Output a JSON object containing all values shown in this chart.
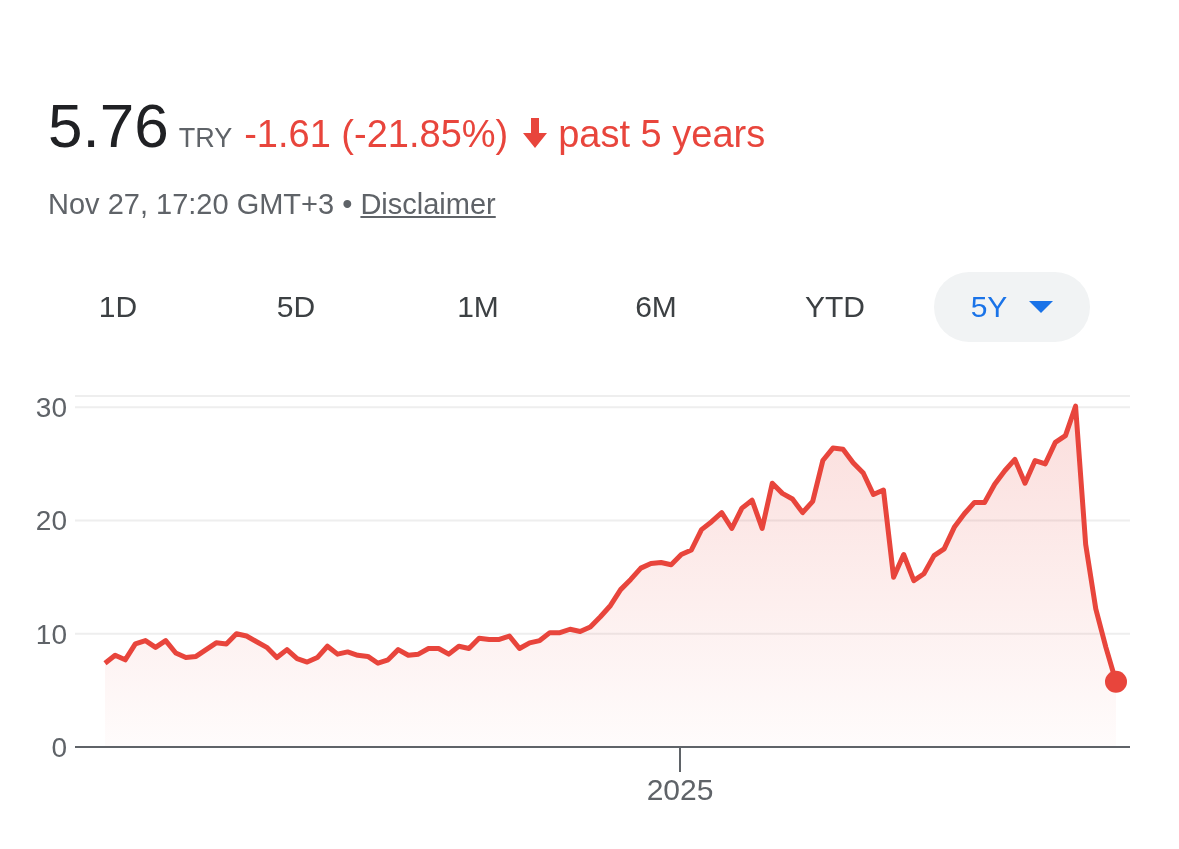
{
  "chart_data": {
    "type": "area",
    "title": "5.76",
    "subtitle": "Nov 27, 17:20 GMT+3 • Disclaimer",
    "annotations": [
      "TRY",
      "-1.61 (-21.85%)",
      "past 5 years",
      "1D",
      "5D",
      "1M",
      "6M",
      "YTD",
      "5Y",
      "2025"
    ],
    "categories": [
      null,
      null,
      null,
      null,
      null,
      null,
      null,
      null,
      null,
      null,
      null,
      null,
      null,
      null,
      null,
      null,
      null,
      null,
      null,
      null,
      null,
      null,
      null,
      null,
      null,
      null,
      null,
      null,
      null,
      null,
      null,
      null,
      null,
      null,
      null,
      null,
      null,
      null,
      null,
      null,
      null,
      null,
      null,
      null,
      null,
      null,
      null,
      null,
      null,
      null,
      null,
      null,
      null,
      null,
      null,
      null,
      null,
      null,
      null,
      null,
      null,
      null,
      null,
      null,
      null,
      null,
      null,
      null,
      null,
      null,
      null,
      null,
      null,
      null,
      null,
      null,
      null,
      null,
      null,
      null,
      null,
      null,
      null,
      null,
      null,
      null,
      null,
      null,
      null,
      null,
      null,
      null,
      null,
      null,
      null,
      null,
      null,
      null,
      null,
      null,
      null
    ],
    "ylim": [
      0,
      31
    ],
    "yticks": [
      0,
      10,
      20,
      30
    ],
    "grid": "y",
    "legend": false,
    "line_style": "solid",
    "series": [
      {
        "color": "#e8453c",
        "values": [
          7.4,
          8.1,
          7.7,
          9.1,
          9.4,
          8.8,
          9.4,
          8.3,
          7.9,
          8.0,
          8.6,
          9.2,
          9.1,
          10.0,
          9.8,
          9.3,
          8.8,
          7.9,
          8.6,
          7.8,
          7.5,
          7.9,
          8.9,
          8.2,
          8.4,
          8.1,
          8.0,
          7.4,
          7.7,
          8.6,
          8.1,
          8.2,
          8.7,
          8.7,
          8.2,
          8.9,
          8.7,
          9.6,
          9.5,
          9.5,
          9.8,
          8.7,
          9.2,
          9.4,
          10.1,
          10.1,
          10.4,
          10.2,
          10.6,
          11.5,
          12.5,
          13.9,
          14.8,
          15.8,
          16.2,
          16.3,
          16.1,
          17.0,
          17.4,
          19.2,
          19.9,
          20.7,
          19.3,
          21.1,
          21.8,
          19.3,
          23.3,
          22.4,
          21.9,
          20.7,
          21.7,
          25.3,
          26.4,
          26.3,
          25.1,
          24.2,
          22.3,
          22.7,
          15.0,
          17.0,
          14.7,
          15.3,
          16.9,
          17.5,
          19.4,
          20.6,
          21.6,
          21.6,
          23.2,
          24.4,
          25.4,
          23.3,
          25.3,
          25.0,
          26.9,
          27.5,
          30.1,
          17.9,
          12.2,
          8.8,
          5.76
        ]
      },
      {
        "type": "scatter",
        "color": "#e8453c",
        "values": [
          null,
          null,
          null,
          null,
          null,
          null,
          null,
          null,
          null,
          null,
          null,
          null,
          null,
          null,
          null,
          null,
          null,
          null,
          null,
          null,
          null,
          null,
          null,
          null,
          null,
          null,
          null,
          null,
          null,
          null,
          null,
          null,
          null,
          null,
          null,
          null,
          null,
          null,
          null,
          null,
          null,
          null,
          null,
          null,
          null,
          null,
          null,
          null,
          null,
          null,
          null,
          null,
          null,
          null,
          null,
          null,
          null,
          null,
          null,
          null,
          null,
          null,
          null,
          null,
          null,
          null,
          null,
          null,
          null,
          null,
          null,
          null,
          null,
          null,
          null,
          null,
          null,
          null,
          null,
          null,
          null,
          null,
          null,
          null,
          null,
          null,
          null,
          null,
          null,
          null,
          null,
          null,
          null,
          null,
          null,
          null,
          null,
          null,
          null,
          null,
          5.76
        ]
      }
    ]
  }
}
